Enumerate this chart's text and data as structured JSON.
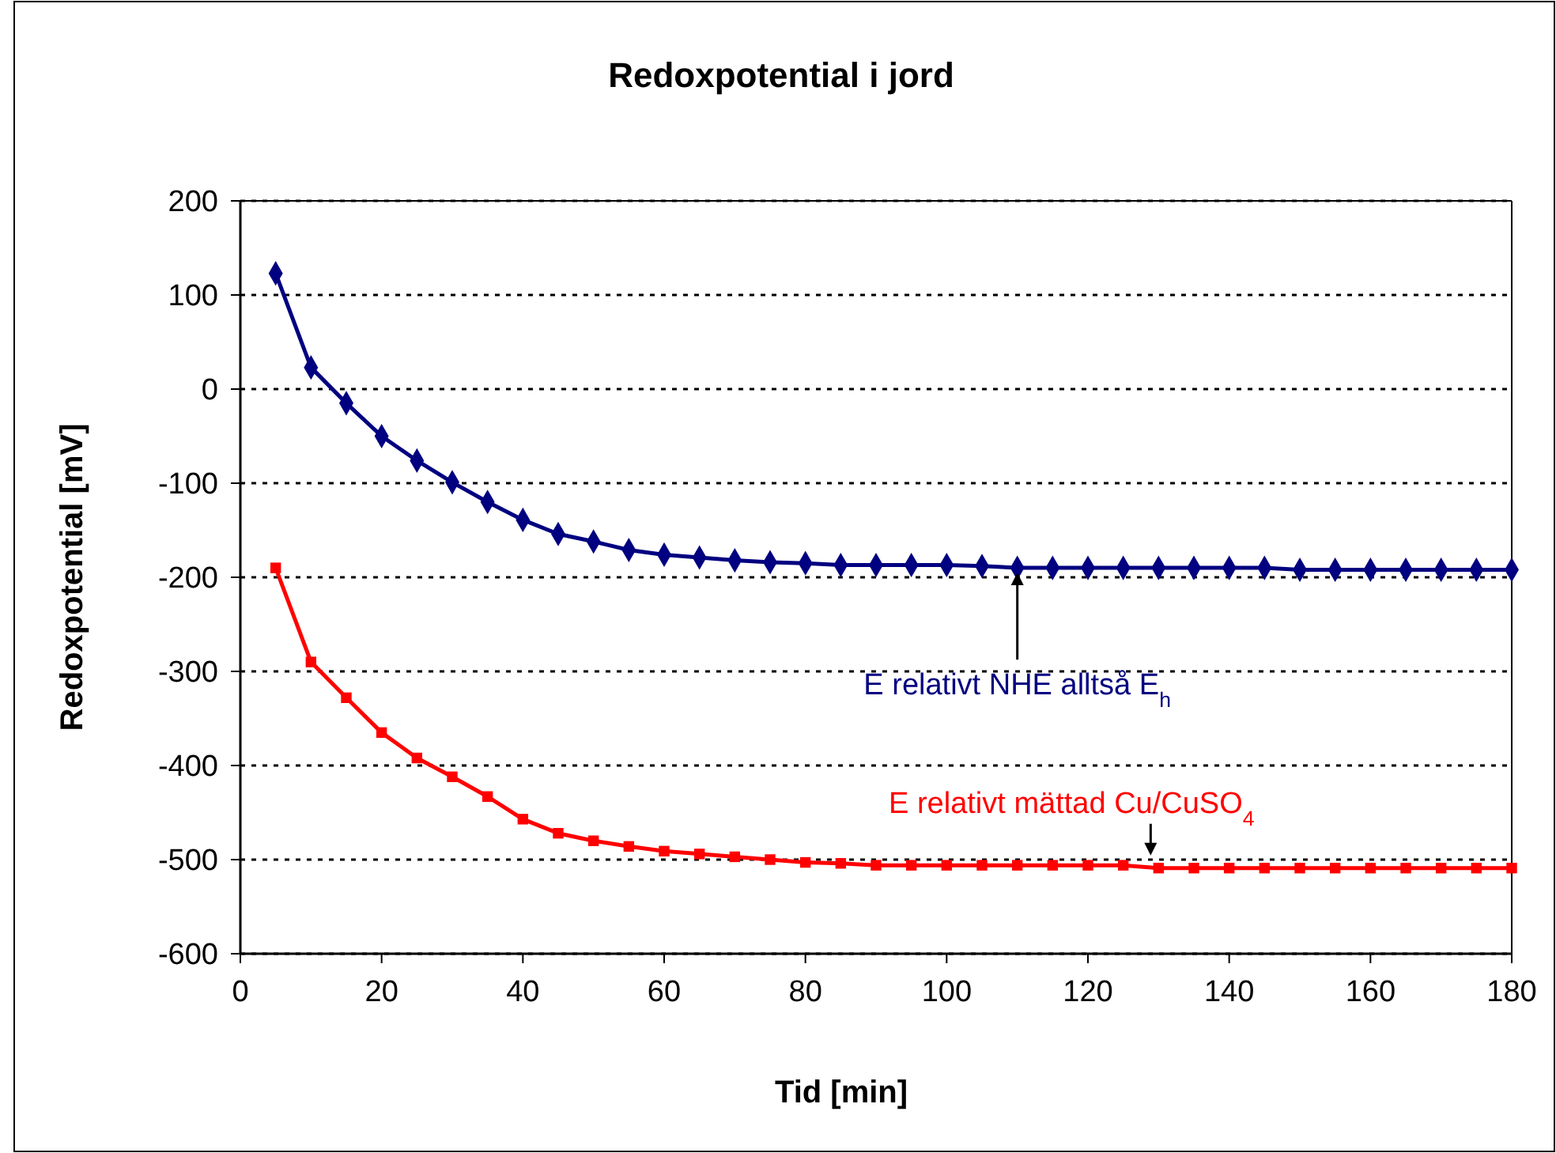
{
  "chart_data": {
    "type": "line",
    "title": "Redoxpotential i jord",
    "xlabel": "Tid [min]",
    "ylabel": "Redoxpotential [mV]",
    "x": [
      5,
      10,
      15,
      20,
      25,
      30,
      35,
      40,
      45,
      50,
      55,
      60,
      65,
      70,
      75,
      80,
      85,
      90,
      95,
      100,
      105,
      110,
      115,
      120,
      125,
      130,
      135,
      140,
      145,
      150,
      155,
      160,
      165,
      170,
      175,
      180
    ],
    "series": [
      {
        "name": "E relativt NHE alltså E$_{h}$",
        "color": "#000080",
        "marker": "diamond",
        "values": [
          123,
          23,
          -15,
          -50,
          -76,
          -99,
          -120,
          -139,
          -154,
          -162,
          -171,
          -176,
          -179,
          -182,
          -184,
          -185,
          -187,
          -187,
          -187,
          -187,
          -188,
          -190,
          -190,
          -190,
          -190,
          -190,
          -190,
          -190,
          -190,
          -192,
          -192,
          -192,
          -192,
          -192,
          -192,
          -192
        ]
      },
      {
        "name": "E relativt mättad Cu/CuSO$_{4}$",
        "color": "#ff0000",
        "marker": "square",
        "values": [
          -190,
          -290,
          -328,
          -365,
          -392,
          -412,
          -433,
          -457,
          -472,
          -480,
          -486,
          -491,
          -494,
          -497,
          -500,
          -503,
          -504,
          -506,
          -506,
          -506,
          -506,
          -506,
          -506,
          -506,
          -506,
          -509,
          -509,
          -509,
          -509,
          -509,
          -509,
          -509,
          -509,
          -509,
          -509,
          -509
        ]
      }
    ],
    "xlim": [
      0,
      180
    ],
    "xticks": [
      0,
      20,
      40,
      60,
      80,
      100,
      120,
      140,
      160,
      180
    ],
    "ylim": [
      -600,
      200
    ],
    "yticks": [
      -600,
      -500,
      -400,
      -300,
      -200,
      -100,
      0,
      100,
      200
    ],
    "grid": "y",
    "legend": false,
    "line_style": "solid"
  }
}
